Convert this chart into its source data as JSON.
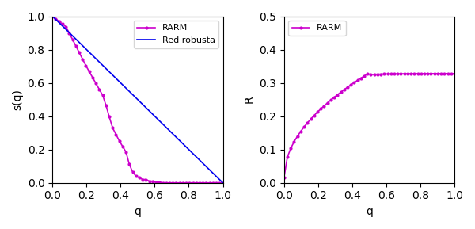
{
  "left_xlabel": "q",
  "left_ylabel": "s(q)",
  "right_xlabel": "q",
  "right_ylabel": "R",
  "line_color": "#cc00cc",
  "robust_color": "#0000ee",
  "marker": ".",
  "markersize": 4,
  "linewidth": 1.2,
  "left_ylim": [
    0.0,
    1.0
  ],
  "right_ylim": [
    0.0,
    0.5
  ],
  "left_xlim": [
    0.0,
    1.0
  ],
  "right_xlim": [
    0.0,
    1.0
  ]
}
